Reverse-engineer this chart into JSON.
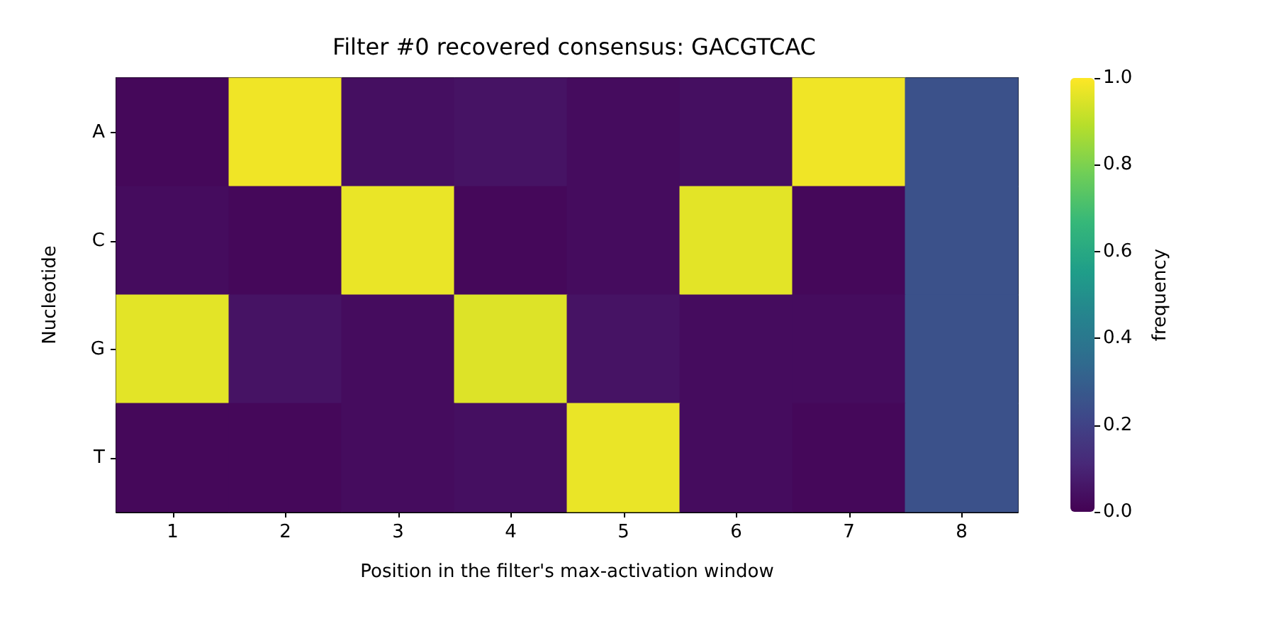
{
  "chart_data": {
    "type": "heatmap",
    "title": "Filter #0 recovered consensus: GACGTCAC",
    "xlabel": "Position in the filter's max-activation window",
    "ylabel": "Nucleotide",
    "clabel": "frequency",
    "categories": [
      "1",
      "2",
      "3",
      "4",
      "5",
      "6",
      "7",
      "8"
    ],
    "y_categories": [
      "A",
      "C",
      "G",
      "T"
    ],
    "cells": [
      [
        0.02,
        0.98,
        0.04,
        0.05,
        0.03,
        0.04,
        0.98,
        0.25
      ],
      [
        0.03,
        0.02,
        0.97,
        0.02,
        0.03,
        0.96,
        0.02,
        0.25
      ],
      [
        0.96,
        0.05,
        0.03,
        0.95,
        0.05,
        0.03,
        0.03,
        0.25
      ],
      [
        0.02,
        0.02,
        0.03,
        0.04,
        0.97,
        0.03,
        0.02,
        0.25
      ]
    ],
    "clim": [
      0,
      1
    ],
    "cticks": [
      {
        "value": 0,
        "label": "0.0"
      },
      {
        "value": 0.2,
        "label": "0.2"
      },
      {
        "value": 0.4,
        "label": "0.4"
      },
      {
        "value": 0.6,
        "label": "0.6"
      },
      {
        "value": 0.8,
        "label": "0.8"
      },
      {
        "value": 1,
        "label": "1.0"
      }
    ]
  }
}
